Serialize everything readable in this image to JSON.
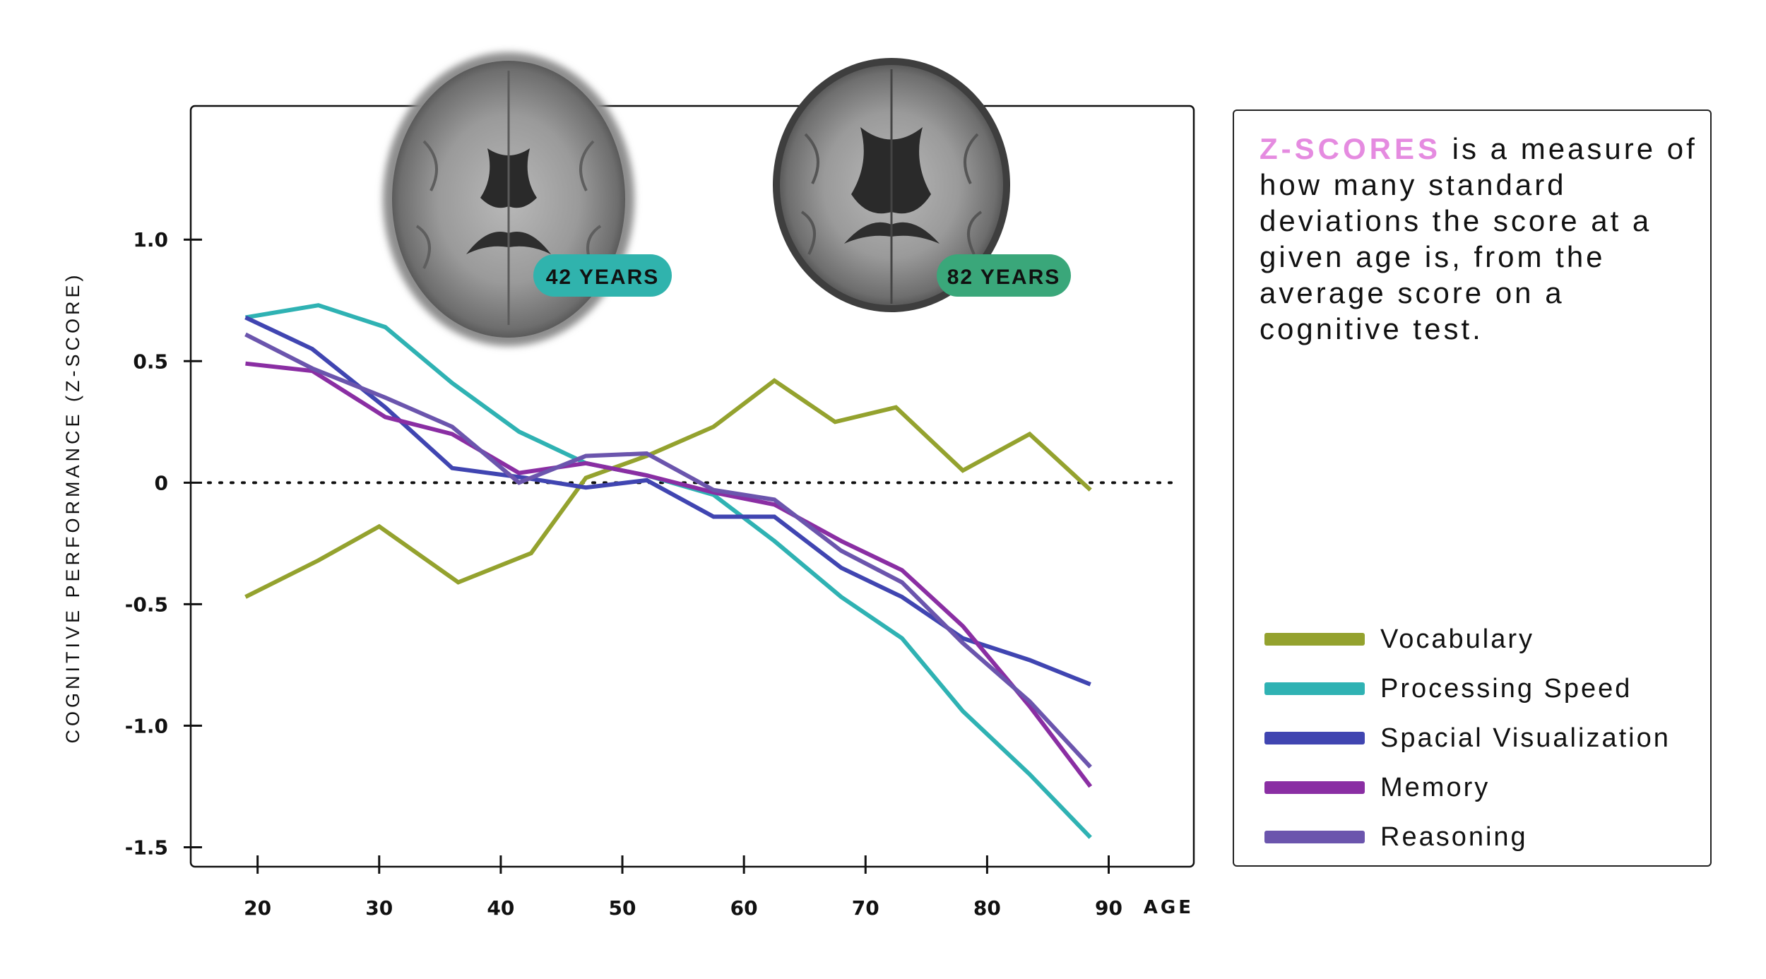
{
  "definition": {
    "term": "Z-SCORES",
    "text": " is a measure of how many standard deviations the score at a given age is, from the average score on a cognitive test."
  },
  "brain_images": [
    {
      "label": "42 YEARS",
      "pill_color": "#30b3ad"
    },
    {
      "label": "82 YEARS",
      "pill_color": "#3aa77a"
    }
  ],
  "chart_data": {
    "type": "line",
    "xlabel": "AGE",
    "ylabel": "COGNITIVE PERFORMANCE (Z-SCORE)",
    "x_ticks": [
      20,
      30,
      40,
      50,
      60,
      70,
      80,
      90
    ],
    "y_ticks": [
      {
        "value": 1.0,
        "label": "1.0"
      },
      {
        "value": 0.5,
        "label": "0.5"
      },
      {
        "value": 0,
        "label": "0"
      },
      {
        "value": -0.5,
        "label": "-0.5"
      },
      {
        "value": -1.0,
        "label": "-1.0"
      },
      {
        "value": -1.5,
        "label": "-1.5"
      }
    ],
    "xlim": [
      14.5,
      97
    ],
    "ylim": [
      -1.58,
      1.55
    ],
    "reference_line": 0,
    "series": [
      {
        "name": "Vocabulary",
        "color": "#94a22e",
        "x": [
          19,
          25,
          30,
          36.5,
          42.5,
          47,
          52,
          57.5,
          62.5,
          67.5,
          72.5,
          78,
          83.5,
          88.5
        ],
        "y": [
          -0.47,
          -0.32,
          -0.18,
          -0.41,
          -0.29,
          0.02,
          0.11,
          0.23,
          0.42,
          0.25,
          0.31,
          0.05,
          0.2,
          -0.03
        ]
      },
      {
        "name": "Processing Speed",
        "color": "#2fb2b3",
        "x": [
          19,
          25,
          30.5,
          36,
          41.5,
          47,
          52,
          57.5,
          62.5,
          68,
          73,
          78,
          83.5,
          88.5
        ],
        "y": [
          0.68,
          0.73,
          0.64,
          0.41,
          0.21,
          0.08,
          0.03,
          -0.05,
          -0.24,
          -0.47,
          -0.64,
          -0.94,
          -1.2,
          -1.46
        ]
      },
      {
        "name": "Spacial Visualization",
        "color": "#4045b1",
        "x": [
          19,
          24.5,
          30.5,
          36,
          42,
          47,
          52,
          57.5,
          62.5,
          68,
          73,
          78,
          83.5,
          88.5
        ],
        "y": [
          0.68,
          0.55,
          0.31,
          0.06,
          0.02,
          -0.02,
          0.01,
          -0.14,
          -0.14,
          -0.35,
          -0.47,
          -0.64,
          -0.73,
          -0.83
        ]
      },
      {
        "name": "Memory",
        "color": "#8a2ea3",
        "x": [
          19,
          24.5,
          30.5,
          36,
          41.5,
          47,
          52,
          57.5,
          62.5,
          68,
          73,
          78,
          83.5,
          88.5
        ],
        "y": [
          0.49,
          0.46,
          0.27,
          0.2,
          0.04,
          0.08,
          0.03,
          -0.04,
          -0.09,
          -0.24,
          -0.36,
          -0.59,
          -0.92,
          -1.25
        ]
      },
      {
        "name": "Reasoning",
        "color": "#6b55ad",
        "x": [
          19,
          24.5,
          30.5,
          36,
          41.5,
          47,
          52,
          57.5,
          62.5,
          68,
          73,
          78,
          83.5,
          88.5
        ],
        "y": [
          0.61,
          0.47,
          0.35,
          0.23,
          0.0,
          0.11,
          0.12,
          -0.03,
          -0.07,
          -0.28,
          -0.41,
          -0.66,
          -0.9,
          -1.17
        ]
      }
    ]
  }
}
